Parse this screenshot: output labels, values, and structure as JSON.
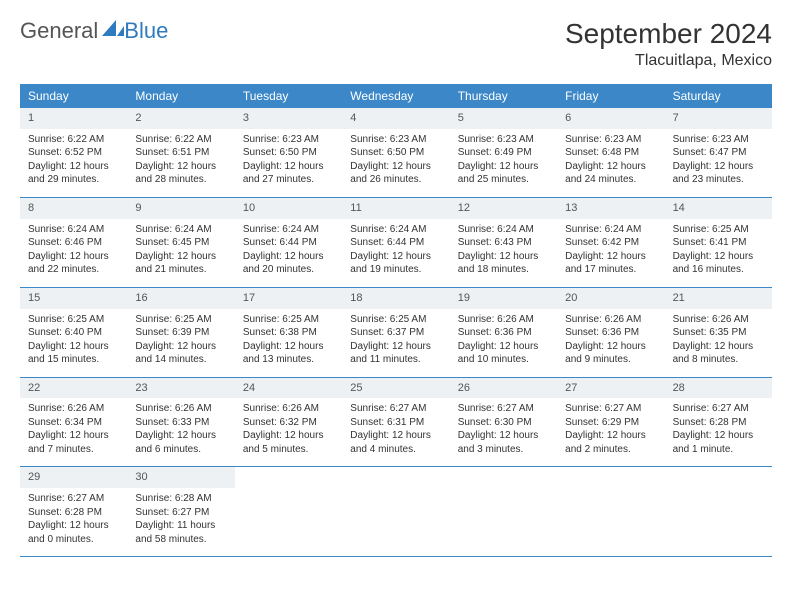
{
  "brand": {
    "part1": "General",
    "part2": "Blue"
  },
  "title": "September 2024",
  "location": "Tlacuitlapa, Mexico",
  "colors": {
    "header_bg": "#3b87c8",
    "header_text": "#ffffff",
    "daynum_bg": "#eef1f3",
    "week_border": "#3b87c8",
    "logo_blue": "#2f7bbf",
    "text": "#333333",
    "background": "#ffffff"
  },
  "typography": {
    "month_title_fontsize": 28,
    "location_fontsize": 16,
    "weekday_fontsize": 12,
    "daynum_fontsize": 11,
    "cell_fontsize": 10
  },
  "weekdays": [
    "Sunday",
    "Monday",
    "Tuesday",
    "Wednesday",
    "Thursday",
    "Friday",
    "Saturday"
  ],
  "weeks": [
    [
      {
        "n": "1",
        "sunrise": "6:22 AM",
        "sunset": "6:52 PM",
        "dl_h": "12",
        "dl_m": "29"
      },
      {
        "n": "2",
        "sunrise": "6:22 AM",
        "sunset": "6:51 PM",
        "dl_h": "12",
        "dl_m": "28"
      },
      {
        "n": "3",
        "sunrise": "6:23 AM",
        "sunset": "6:50 PM",
        "dl_h": "12",
        "dl_m": "27"
      },
      {
        "n": "4",
        "sunrise": "6:23 AM",
        "sunset": "6:50 PM",
        "dl_h": "12",
        "dl_m": "26"
      },
      {
        "n": "5",
        "sunrise": "6:23 AM",
        "sunset": "6:49 PM",
        "dl_h": "12",
        "dl_m": "25"
      },
      {
        "n": "6",
        "sunrise": "6:23 AM",
        "sunset": "6:48 PM",
        "dl_h": "12",
        "dl_m": "24"
      },
      {
        "n": "7",
        "sunrise": "6:23 AM",
        "sunset": "6:47 PM",
        "dl_h": "12",
        "dl_m": "23"
      }
    ],
    [
      {
        "n": "8",
        "sunrise": "6:24 AM",
        "sunset": "6:46 PM",
        "dl_h": "12",
        "dl_m": "22"
      },
      {
        "n": "9",
        "sunrise": "6:24 AM",
        "sunset": "6:45 PM",
        "dl_h": "12",
        "dl_m": "21"
      },
      {
        "n": "10",
        "sunrise": "6:24 AM",
        "sunset": "6:44 PM",
        "dl_h": "12",
        "dl_m": "20"
      },
      {
        "n": "11",
        "sunrise": "6:24 AM",
        "sunset": "6:44 PM",
        "dl_h": "12",
        "dl_m": "19"
      },
      {
        "n": "12",
        "sunrise": "6:24 AM",
        "sunset": "6:43 PM",
        "dl_h": "12",
        "dl_m": "18"
      },
      {
        "n": "13",
        "sunrise": "6:24 AM",
        "sunset": "6:42 PM",
        "dl_h": "12",
        "dl_m": "17"
      },
      {
        "n": "14",
        "sunrise": "6:25 AM",
        "sunset": "6:41 PM",
        "dl_h": "12",
        "dl_m": "16"
      }
    ],
    [
      {
        "n": "15",
        "sunrise": "6:25 AM",
        "sunset": "6:40 PM",
        "dl_h": "12",
        "dl_m": "15"
      },
      {
        "n": "16",
        "sunrise": "6:25 AM",
        "sunset": "6:39 PM",
        "dl_h": "12",
        "dl_m": "14"
      },
      {
        "n": "17",
        "sunrise": "6:25 AM",
        "sunset": "6:38 PM",
        "dl_h": "12",
        "dl_m": "13"
      },
      {
        "n": "18",
        "sunrise": "6:25 AM",
        "sunset": "6:37 PM",
        "dl_h": "12",
        "dl_m": "11"
      },
      {
        "n": "19",
        "sunrise": "6:26 AM",
        "sunset": "6:36 PM",
        "dl_h": "12",
        "dl_m": "10"
      },
      {
        "n": "20",
        "sunrise": "6:26 AM",
        "sunset": "6:36 PM",
        "dl_h": "12",
        "dl_m": "9"
      },
      {
        "n": "21",
        "sunrise": "6:26 AM",
        "sunset": "6:35 PM",
        "dl_h": "12",
        "dl_m": "8"
      }
    ],
    [
      {
        "n": "22",
        "sunrise": "6:26 AM",
        "sunset": "6:34 PM",
        "dl_h": "12",
        "dl_m": "7"
      },
      {
        "n": "23",
        "sunrise": "6:26 AM",
        "sunset": "6:33 PM",
        "dl_h": "12",
        "dl_m": "6"
      },
      {
        "n": "24",
        "sunrise": "6:26 AM",
        "sunset": "6:32 PM",
        "dl_h": "12",
        "dl_m": "5"
      },
      {
        "n": "25",
        "sunrise": "6:27 AM",
        "sunset": "6:31 PM",
        "dl_h": "12",
        "dl_m": "4"
      },
      {
        "n": "26",
        "sunrise": "6:27 AM",
        "sunset": "6:30 PM",
        "dl_h": "12",
        "dl_m": "3"
      },
      {
        "n": "27",
        "sunrise": "6:27 AM",
        "sunset": "6:29 PM",
        "dl_h": "12",
        "dl_m": "2"
      },
      {
        "n": "28",
        "sunrise": "6:27 AM",
        "sunset": "6:28 PM",
        "dl_h": "12",
        "dl_m": "1"
      }
    ],
    [
      {
        "n": "29",
        "sunrise": "6:27 AM",
        "sunset": "6:28 PM",
        "dl_h": "12",
        "dl_m": "0"
      },
      {
        "n": "30",
        "sunrise": "6:28 AM",
        "sunset": "6:27 PM",
        "dl_h": "11",
        "dl_m": "58"
      },
      null,
      null,
      null,
      null,
      null
    ]
  ],
  "labels": {
    "sunrise_prefix": "Sunrise: ",
    "sunset_prefix": "Sunset: ",
    "daylight_prefix": "Daylight: ",
    "hours_word": " hours",
    "and_word": "and ",
    "minutes_suffix": " minutes.",
    "minute_suffix": " minute."
  }
}
